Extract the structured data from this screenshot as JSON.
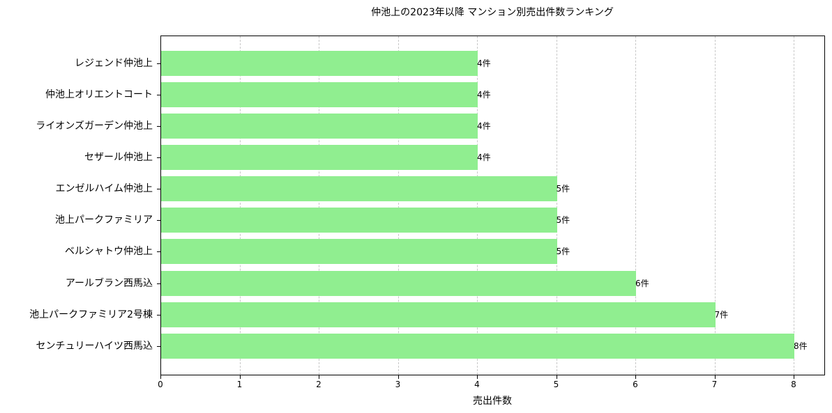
{
  "chart_data": {
    "type": "bar",
    "orientation": "horizontal",
    "title": "仲池上の2023年以降 マンション別売出件数ランキング",
    "xlabel": "売出件数",
    "ylabel": "",
    "xlim": [
      0,
      8.4
    ],
    "xticks": [
      "0",
      "1",
      "2",
      "3",
      "4",
      "5",
      "6",
      "7",
      "8"
    ],
    "grid": "x, dashed",
    "bar_color": "#90ee90",
    "categories": [
      "レジェンド仲池上",
      "仲池上オリエントコート",
      "ライオンズガーデン仲池上",
      "セザール仲池上",
      "エンゼルハイム仲池上",
      "池上パークファミリア",
      "ベルシャトウ仲池上",
      "アールブラン西馬込",
      "池上パークファミリア2号棟",
      "センチュリーハイツ西馬込"
    ],
    "values": [
      4,
      4,
      4,
      4,
      5,
      5,
      5,
      6,
      7,
      8
    ],
    "data_labels": [
      "4件",
      "4件",
      "4件",
      "4件",
      "5件",
      "5件",
      "5件",
      "6件",
      "7件",
      "8件"
    ]
  }
}
